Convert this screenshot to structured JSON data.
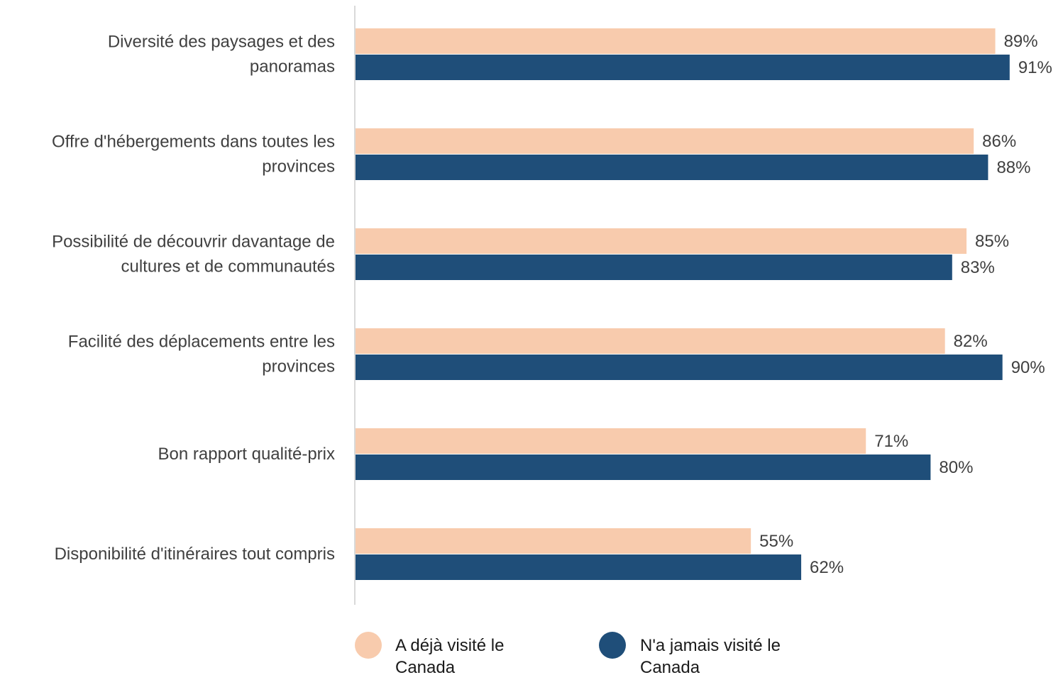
{
  "chart_data": {
    "type": "bar",
    "orientation": "horizontal",
    "categories": [
      [
        "Diversité des paysages et des",
        "panoramas"
      ],
      [
        "Offre d'hébergements dans toutes les",
        "provinces"
      ],
      [
        "Possibilité de découvrir davantage de",
        "cultures et de communautés"
      ],
      [
        "Facilité des déplacements entre les",
        "provinces"
      ],
      [
        "Bon rapport qualité-prix"
      ],
      [
        "Disponibilité d'itinéraires tout compris"
      ]
    ],
    "series": [
      {
        "name": "A déjà visité le Canada",
        "legend_lines": [
          "A déjà visité le",
          "Canada"
        ],
        "color": "#F8CBAD",
        "values": [
          89,
          86,
          85,
          82,
          71,
          55
        ],
        "labels": [
          "89%",
          "86%",
          "85%",
          "82%",
          "71%",
          "55%"
        ]
      },
      {
        "name": "N'a jamais visité le Canada",
        "legend_lines": [
          "N'a jamais visité le",
          "Canada"
        ],
        "color": "#1F4E79",
        "values": [
          91,
          88,
          83,
          90,
          80,
          62
        ],
        "labels": [
          "91%",
          "88%",
          "83%",
          "90%",
          "80%",
          "62%"
        ]
      }
    ],
    "xlim": [
      0,
      100
    ],
    "grid": false,
    "legend_position": "bottom",
    "axis_color": "#D9D9D9"
  }
}
